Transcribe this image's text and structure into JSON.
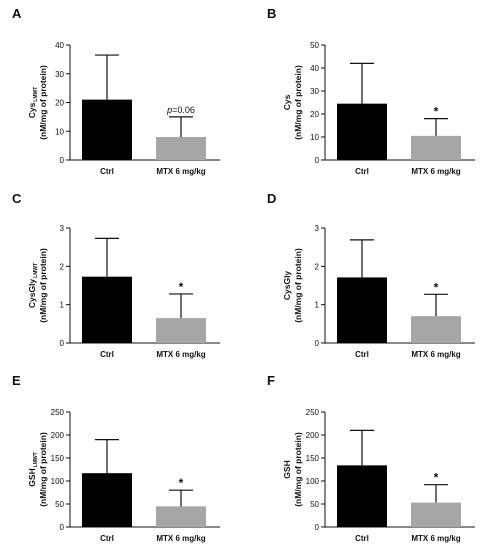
{
  "chart_data": [
    {
      "panel": "A",
      "type": "bar",
      "ylabel_main": "Cys",
      "ylabel_sub": "LMWT",
      "ylabel_unit": "(nM/mg of protein)",
      "categories": [
        "Ctrl",
        "MTX 6 mg/kg"
      ],
      "values": [
        21,
        8
      ],
      "errors": [
        15.5,
        7
      ],
      "ylim": [
        0,
        40
      ],
      "yticks": [
        0,
        10,
        20,
        30,
        40
      ],
      "annotations": [
        {
          "kind": "p",
          "prefix": "p",
          "text": "=0.06"
        }
      ],
      "colors": [
        "#000000",
        "#a6a6a6"
      ]
    },
    {
      "panel": "B",
      "type": "bar",
      "ylabel_main": "Cys",
      "ylabel_sub": "",
      "ylabel_unit": "(nM/mg of protein)",
      "categories": [
        "Ctrl",
        "MTX 6 mg/kg"
      ],
      "values": [
        24.5,
        10.5
      ],
      "errors": [
        17.5,
        7.5
      ],
      "ylim": [
        0,
        50
      ],
      "yticks": [
        0,
        10,
        20,
        30,
        40,
        50
      ],
      "annotations": [
        {
          "kind": "star",
          "text": "*"
        }
      ],
      "colors": [
        "#000000",
        "#a6a6a6"
      ]
    },
    {
      "panel": "C",
      "type": "bar",
      "ylabel_main": "CysGly",
      "ylabel_sub": "LMWT",
      "ylabel_unit": "(nM/mg of protein)",
      "categories": [
        "Ctrl",
        "MTX 6 mg/kg"
      ],
      "values": [
        1.73,
        0.65
      ],
      "errors": [
        1.0,
        0.63
      ],
      "ylim": [
        0,
        3
      ],
      "yticks": [
        0,
        1,
        2,
        3
      ],
      "annotations": [
        {
          "kind": "star",
          "text": "*"
        }
      ],
      "colors": [
        "#000000",
        "#a6a6a6"
      ]
    },
    {
      "panel": "D",
      "type": "bar",
      "ylabel_main": "CysGly",
      "ylabel_sub": "",
      "ylabel_unit": "(nM/mg of protein)",
      "categories": [
        "Ctrl",
        "MTX 6 mg/kg"
      ],
      "values": [
        1.71,
        0.7
      ],
      "errors": [
        0.98,
        0.57
      ],
      "ylim": [
        0,
        3
      ],
      "yticks": [
        0,
        1,
        2,
        3
      ],
      "annotations": [
        {
          "kind": "star",
          "text": "*"
        }
      ],
      "colors": [
        "#000000",
        "#a6a6a6"
      ]
    },
    {
      "panel": "E",
      "type": "bar",
      "ylabel_main": "GSH",
      "ylabel_sub": "LMWT",
      "ylabel_unit": "(nM/mg of protein)",
      "categories": [
        "Ctrl",
        "MTX 6 mg/kg"
      ],
      "values": [
        117,
        45
      ],
      "errors": [
        73,
        35
      ],
      "ylim": [
        0,
        250
      ],
      "yticks": [
        0,
        50,
        100,
        150,
        200,
        250
      ],
      "annotations": [
        {
          "kind": "star",
          "text": "*"
        }
      ],
      "colors": [
        "#000000",
        "#a6a6a6"
      ]
    },
    {
      "panel": "F",
      "type": "bar",
      "ylabel_main": "GSH",
      "ylabel_sub": "",
      "ylabel_unit": "(nM/mg of protein)",
      "categories": [
        "Ctrl",
        "MTX 6 mg/kg"
      ],
      "values": [
        134,
        53
      ],
      "errors": [
        76,
        39
      ],
      "ylim": [
        0,
        250
      ],
      "yticks": [
        0,
        50,
        100,
        150,
        200,
        250
      ],
      "annotations": [
        {
          "kind": "star",
          "text": "*"
        }
      ],
      "colors": [
        "#000000",
        "#a6a6a6"
      ]
    }
  ]
}
